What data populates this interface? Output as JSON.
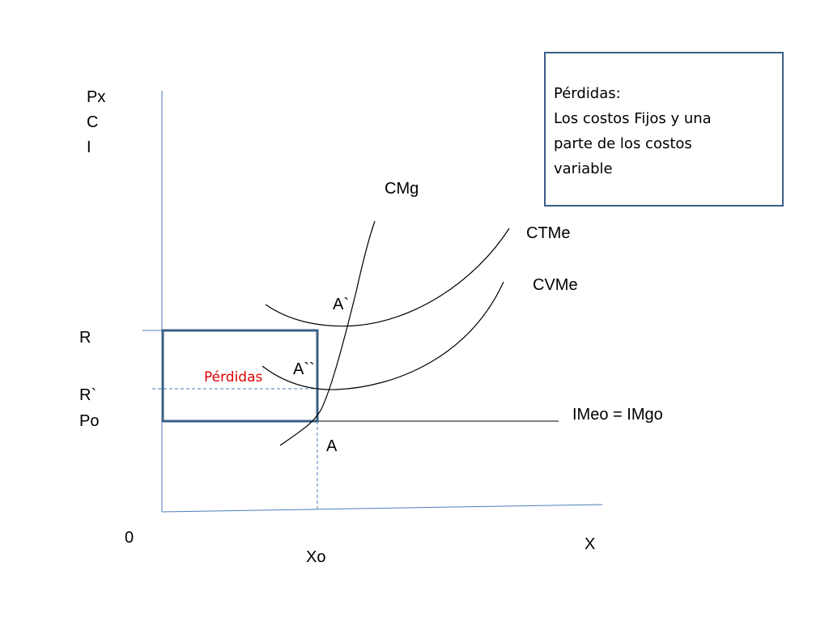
{
  "axes": {
    "y_label_lines": [
      "Px",
      "C",
      "I"
    ],
    "x_label": "X",
    "origin_label": "0"
  },
  "curves": {
    "cmg": "CMg",
    "ctme": "CTMe",
    "cvme": "CVMe",
    "price_line": "IMeo = IMgo"
  },
  "levels": {
    "r": "R",
    "r_prime": "R`",
    "po": "Po",
    "xo": "Xo"
  },
  "points": {
    "a_prime": "A`",
    "a_double_prime": "A``",
    "a": "A"
  },
  "loss_area_label": "Pérdidas",
  "note": {
    "lines": [
      "Pérdidas:",
      "Los costos Fijos y una",
      "parte de los costos",
      "variable"
    ]
  },
  "colors": {
    "axis": "#4a7ebb",
    "box": "#3b5f86",
    "curve": "#000000",
    "loss_label": "#e00000",
    "dashed": "#4a7ebb"
  }
}
